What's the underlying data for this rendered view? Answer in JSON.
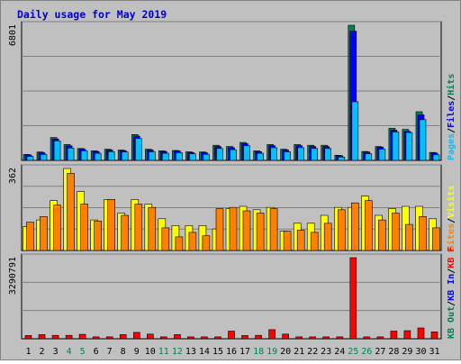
{
  "colors": {
    "background": "#ffffff",
    "panel_bg": "#c0c0c0",
    "frame": "#808080",
    "title": "#0000cc",
    "axis_text": "#000000",
    "weekend_text": "#00805c",
    "hits": "#00805c",
    "files": "#0000ff",
    "pages": "#00c0ff",
    "visits": "#ffff00",
    "sites": "#ff8000",
    "kb_in": "#0000ff",
    "kb_out": "#00805c",
    "kb_f": "#ff0000"
  },
  "chart_data": {
    "type": "bar",
    "title": "Daily usage for May 2019",
    "x": [
      1,
      2,
      3,
      4,
      5,
      6,
      7,
      8,
      9,
      10,
      11,
      12,
      13,
      14,
      15,
      16,
      17,
      18,
      19,
      20,
      21,
      22,
      23,
      24,
      25,
      26,
      27,
      28,
      29,
      30,
      31
    ],
    "x_tick_labels": [
      "1",
      "2",
      "3",
      "4",
      "5",
      "6",
      "7",
      "8",
      "9",
      "10",
      "11",
      "12",
      "13",
      "14",
      "15",
      "16",
      "17",
      "18",
      "19",
      "20",
      "21",
      "22",
      "23",
      "24",
      "25",
      "26",
      "27",
      "28",
      "29",
      "30",
      "31"
    ],
    "weekend_days": [
      4,
      5,
      11,
      12,
      18,
      19,
      25,
      26
    ],
    "panels": [
      {
        "id": "hits",
        "ymax": 6801,
        "ytick": "6801",
        "legend": [
          {
            "label": "Hits",
            "color_key": "hits"
          },
          {
            "label": "Files",
            "color_key": "files"
          },
          {
            "label": "Pages",
            "color_key": "pages"
          }
        ],
        "legend_separator": "/",
        "series": [
          {
            "name": "Hits",
            "color_key": "hits",
            "values": [
              300,
              420,
              1150,
              800,
              600,
              480,
              560,
              520,
              1300,
              560,
              480,
              500,
              430,
              420,
              760,
              700,
              900,
              480,
              800,
              560,
              800,
              760,
              760,
              260,
              6801,
              450,
              700,
              1620,
              1560,
              2450,
              400
            ]
          },
          {
            "name": "Files",
            "color_key": "files",
            "values": [
              270,
              380,
              1080,
              730,
              560,
              450,
              520,
              490,
              1220,
              520,
              450,
              470,
              400,
              390,
              700,
              640,
              840,
              440,
              740,
              520,
              740,
              700,
              700,
              230,
              6500,
              420,
              660,
              1520,
              1460,
              2300,
              370
            ]
          },
          {
            "name": "Pages",
            "color_key": "pages",
            "values": [
              200,
              300,
              980,
              620,
              480,
              360,
              440,
              420,
              1100,
              430,
              360,
              390,
              330,
              310,
              600,
              540,
              740,
              360,
              640,
              430,
              640,
              600,
              600,
              170,
              2950,
              330,
              560,
              1430,
              1400,
              2050,
              280
            ]
          }
        ]
      },
      {
        "id": "visits",
        "ymax": 362,
        "ytick": "362",
        "legend": [
          {
            "label": "Visits",
            "color_key": "visits"
          },
          {
            "label": "Sites",
            "color_key": "sites"
          }
        ],
        "legend_separator": "/",
        "series": [
          {
            "name": "Visits",
            "color_key": "visits",
            "values": [
              105,
              135,
              220,
              362,
              260,
              135,
              225,
              165,
              225,
              205,
              140,
              110,
              110,
              110,
              95,
              185,
              195,
              180,
              190,
              85,
              120,
              120,
              155,
              190,
              190,
              240,
              155,
              185,
              195,
              195,
              140
            ]
          },
          {
            "name": "Sites",
            "color_key": "sites",
            "values": [
              125,
              150,
              200,
              340,
              205,
              130,
              225,
              155,
              205,
              190,
              100,
              60,
              80,
              65,
              185,
              190,
              175,
              165,
              185,
              85,
              90,
              80,
              120,
              180,
              210,
              220,
              135,
              165,
              115,
              150,
              100
            ]
          }
        ]
      },
      {
        "id": "kbytes",
        "ymax": 3290791,
        "ytick": "3290791",
        "legend": [
          {
            "label": "KB F",
            "color_key": "kb_f"
          },
          {
            "label": "KB In",
            "color_key": "kb_in"
          },
          {
            "label": "KB Out",
            "color_key": "kb_out"
          }
        ],
        "legend_separator": "/",
        "series": [
          {
            "name": "KB F",
            "color_key": "kb_f",
            "values": [
              130000,
              170000,
              140000,
              140000,
              180000,
              75000,
              75000,
              170000,
              260000,
              190000,
              75000,
              170000,
              75000,
              75000,
              75000,
              310000,
              130000,
              140000,
              370000,
              190000,
              75000,
              75000,
              75000,
              75000,
              3290791,
              75000,
              75000,
              310000,
              330000,
              440000,
              280000
            ]
          }
        ]
      }
    ]
  }
}
